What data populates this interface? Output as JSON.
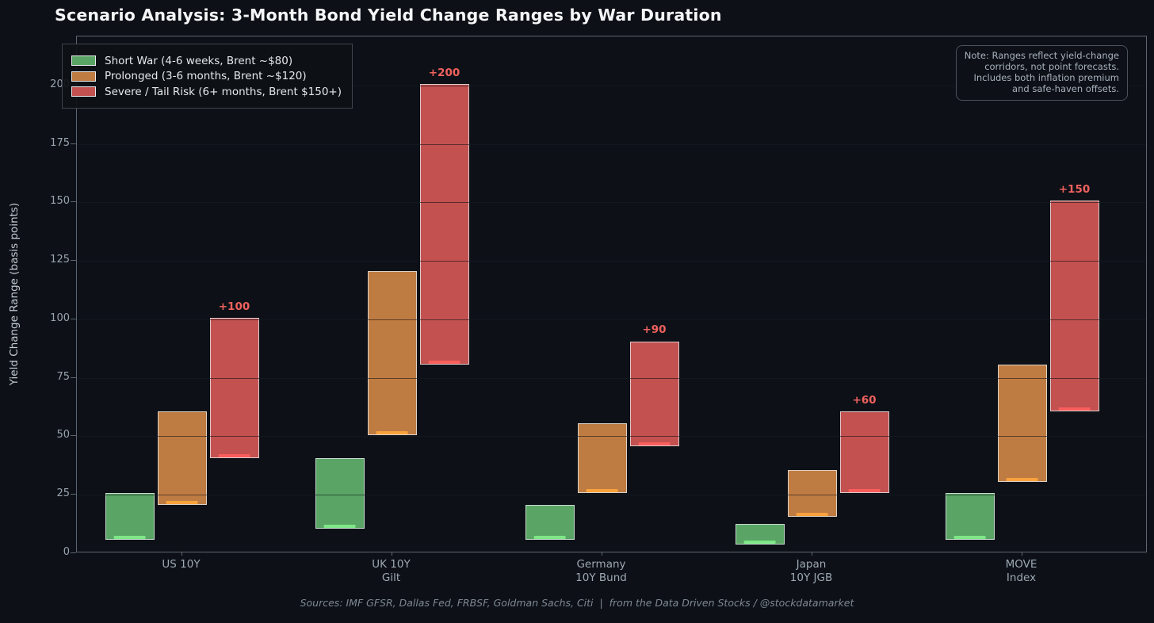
{
  "header": {
    "title": "Scenario Analysis: 3-Month Bond Yield Change Ranges by War Duration"
  },
  "chart_data": {
    "type": "bar",
    "variant": "floating-range-columns",
    "title": "Scenario Analysis: 3-Month Bond Yield Change Ranges by War Duration",
    "ylabel": "Yield Change Range (basis points)",
    "unit": "basis points",
    "ylim": [
      0,
      221
    ],
    "yticks": [
      0,
      25,
      50,
      75,
      100,
      125,
      150,
      175,
      200
    ],
    "grid": true,
    "legend_position": "upper left",
    "categories": [
      [
        "US 10Y"
      ],
      [
        "UK 10Y",
        "Gilt"
      ],
      [
        "Germany",
        "10Y Bund"
      ],
      [
        "Japan",
        "10Y JGB"
      ],
      [
        "MOVE",
        "Index"
      ]
    ],
    "series": [
      {
        "name": "Short War (4-6 weeks, Brent ~$80)",
        "color": "#5aa565",
        "underline_color": "#7ee787",
        "ranges_bp": [
          [
            5,
            25
          ],
          [
            10,
            40
          ],
          [
            5,
            20
          ],
          [
            3,
            12
          ],
          [
            5,
            25
          ]
        ]
      },
      {
        "name": "Prolonged (3-6 months, Brent ~$120)",
        "color": "#bf7c42",
        "underline_color": "#f9a23c",
        "ranges_bp": [
          [
            20,
            60
          ],
          [
            50,
            120
          ],
          [
            25,
            55
          ],
          [
            15,
            35
          ],
          [
            30,
            80
          ]
        ]
      },
      {
        "name": "Severe / Tail Risk (6+ months, Brent $150+)",
        "color": "#c25150",
        "underline_color": "#fa5e5c",
        "ranges_bp": [
          [
            40,
            100
          ],
          [
            80,
            200
          ],
          [
            45,
            90
          ],
          [
            25,
            60
          ],
          [
            60,
            150
          ]
        ]
      }
    ],
    "annotations": {
      "color": "#f0615e",
      "series_index": 2,
      "labels": [
        "+100",
        "+200",
        "+90",
        "+60",
        "+150"
      ]
    }
  },
  "note_box": {
    "lines": [
      "Note: Ranges reflect yield-change",
      "corridors, not point forecasts.",
      "Includes both inflation premium",
      "and safe-haven offsets."
    ]
  },
  "footer": {
    "text": "Sources: IMF GFSR, Dallas Fed, FRBSF, Goldman Sachs, Citi  |  from the Data Driven Stocks / @stockdatamarket"
  },
  "theme": {
    "background": "#0d1117",
    "gridline": "#212833",
    "spine": "#5c6570",
    "tick_label": "#99a3ae",
    "title_color": "#f4f6f8"
  }
}
